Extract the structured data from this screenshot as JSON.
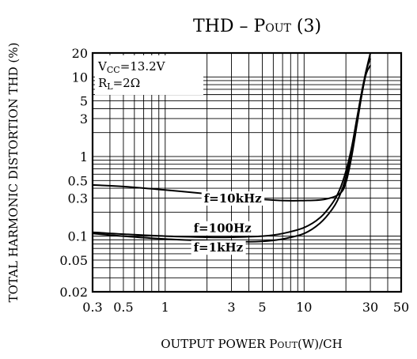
{
  "chart_data": {
    "type": "line",
    "title_main": "THD  –  P",
    "title_sub": "OUT",
    "title_tail": " (3)",
    "ylabel": "TOTAL HARMONIC DISTORTION THD (%)",
    "xlabel_main": "OUTPUT POWER P",
    "xlabel_sub": "OUT",
    "xlabel_tail": "(W)/CH",
    "x_scale": "log",
    "y_scale": "log",
    "xlim": [
      0.3,
      50
    ],
    "ylim": [
      0.02,
      20
    ],
    "grid": true,
    "x_ticks": [
      {
        "value": 0.3,
        "label": "0.3"
      },
      {
        "value": 0.5,
        "label": "0.5"
      },
      {
        "value": 1,
        "label": "1"
      },
      {
        "value": 3,
        "label": "3"
      },
      {
        "value": 5,
        "label": "5"
      },
      {
        "value": 10,
        "label": "10"
      },
      {
        "value": 30,
        "label": "30"
      },
      {
        "value": 50,
        "label": "50"
      }
    ],
    "y_ticks": [
      {
        "value": 0.02,
        "label": "0.02"
      },
      {
        "value": 0.05,
        "label": "0.05"
      },
      {
        "value": 0.1,
        "label": "0.1"
      },
      {
        "value": 0.3,
        "label": "0.3"
      },
      {
        "value": 0.5,
        "label": "0.5"
      },
      {
        "value": 1,
        "label": "1"
      },
      {
        "value": 3,
        "label": "3"
      },
      {
        "value": 5,
        "label": "5"
      },
      {
        "value": 10,
        "label": "10"
      },
      {
        "value": 20,
        "label": "20"
      }
    ],
    "conditions": {
      "vcc_main": "V",
      "vcc_sub": "CC",
      "vcc_tail": "=13.2V",
      "rl_main": "R",
      "rl_sub": "L",
      "rl_tail": "=2Ω"
    },
    "series": [
      {
        "name": "f=10kHz",
        "label_anchor": [
          1.9,
          0.265
        ],
        "points": [
          [
            0.3,
            0.44
          ],
          [
            0.5,
            0.42
          ],
          [
            1,
            0.38
          ],
          [
            2,
            0.34
          ],
          [
            3,
            0.31
          ],
          [
            5,
            0.29
          ],
          [
            7,
            0.28
          ],
          [
            10,
            0.28
          ],
          [
            14,
            0.29
          ],
          [
            18,
            0.34
          ],
          [
            20,
            0.47
          ],
          [
            22,
            1.0
          ],
          [
            24,
            2.5
          ],
          [
            26,
            6.0
          ],
          [
            28,
            12.0
          ],
          [
            30,
            17.0
          ]
        ]
      },
      {
        "name": "f=100Hz",
        "label_anchor": [
          1.6,
          0.112
        ],
        "points": [
          [
            0.3,
            0.112
          ],
          [
            0.5,
            0.106
          ],
          [
            1,
            0.1
          ],
          [
            2,
            0.097
          ],
          [
            3,
            0.097
          ],
          [
            5,
            0.1
          ],
          [
            7,
            0.108
          ],
          [
            10,
            0.128
          ],
          [
            13,
            0.17
          ],
          [
            16,
            0.26
          ],
          [
            18,
            0.38
          ],
          [
            20,
            0.65
          ],
          [
            22,
            1.3
          ],
          [
            24,
            3.0
          ],
          [
            26,
            6.5
          ],
          [
            28,
            12.0
          ],
          [
            30,
            20.0
          ]
        ]
      },
      {
        "name": "f=1kHz",
        "label_anchor": [
          1.6,
          0.064
        ],
        "points": [
          [
            0.3,
            0.108
          ],
          [
            0.5,
            0.1
          ],
          [
            1,
            0.092
          ],
          [
            2,
            0.087
          ],
          [
            3,
            0.085
          ],
          [
            5,
            0.086
          ],
          [
            7,
            0.092
          ],
          [
            10,
            0.108
          ],
          [
            13,
            0.145
          ],
          [
            16,
            0.22
          ],
          [
            18,
            0.32
          ],
          [
            20,
            0.55
          ],
          [
            22,
            1.2
          ],
          [
            24,
            2.8
          ],
          [
            26,
            6.0
          ],
          [
            28,
            11.0
          ],
          [
            30,
            14.0
          ]
        ]
      }
    ]
  }
}
